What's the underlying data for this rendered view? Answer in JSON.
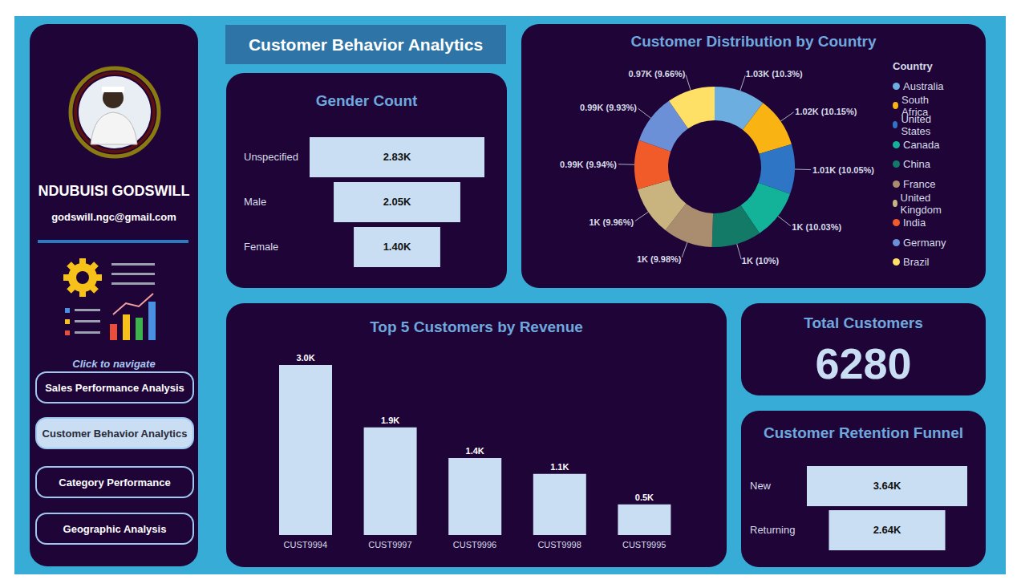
{
  "title": "Customer Behavior Analytics",
  "sidebar": {
    "name": "NDUBUISI GODSWILL",
    "email": "godswill.ngc@gmail.com",
    "navigation_hint": "Click to navigate",
    "buttons": [
      "Sales Performance Analysis",
      "Customer Behavior Analytics",
      "Category Performance",
      "Geographic Analysis"
    ],
    "active": "Customer Behavior Analytics"
  },
  "kpi": {
    "title": "Total Customers",
    "value": 6280
  },
  "chart_data": [
    {
      "type": "funnel",
      "title": "Gender Count",
      "categories": [
        "Unspecified",
        "Male",
        "Female"
      ],
      "values": [
        2830,
        2050,
        1400
      ],
      "value_labels": [
        "2.83K",
        "2.05K",
        "1.40K"
      ],
      "data_labels": true,
      "tick_labels": "y",
      "color": "#c9def2"
    },
    {
      "type": "donut",
      "title": "Customer Distribution by Country",
      "legend_title": "Country",
      "legend": "right",
      "categories": [
        "Australia",
        "South Africa",
        "United States",
        "Canada",
        "China",
        "France",
        "United Kingdom",
        "India",
        "Germany",
        "Brazil"
      ],
      "values": [
        1030,
        1015,
        1005,
        1003,
        1000,
        998,
        996,
        994,
        993,
        966
      ],
      "value_labels": [
        "1.03K (10.3%)",
        "1.02K (10.15%)",
        "1.01K (10.05%)",
        "1K (10.03%)",
        "1K (10%)",
        "1K (9.98%)",
        "1K (9.96%)",
        "0.99K (9.94%)",
        "0.99K (9.93%)",
        "0.97K (9.66%)"
      ],
      "data_labels": true,
      "colors": [
        "#6caee0",
        "#f9b312",
        "#2e75c6",
        "#12b398",
        "#137a68",
        "#a98d6e",
        "#c9b47f",
        "#f15a29",
        "#6b90d8",
        "#ffe066"
      ]
    },
    {
      "type": "bar",
      "title": "Top 5 Customers by Revenue",
      "categories": [
        "CUST9994",
        "CUST9997",
        "CUST9996",
        "CUST9998",
        "CUST9995"
      ],
      "values": [
        3000,
        1900,
        1360,
        1080,
        540
      ],
      "value_labels": [
        "3.0K",
        "1.9K",
        "1.4K",
        "1.1K",
        "0.5K"
      ],
      "data_labels": true,
      "tick_labels": "x",
      "color": "#c9def2"
    },
    {
      "type": "funnel",
      "title": "Customer Retention Funnel",
      "categories": [
        "New",
        "Returning"
      ],
      "values": [
        3640,
        2640
      ],
      "value_labels": [
        "3.64K",
        "2.64K"
      ],
      "data_labels": true,
      "tick_labels": "y",
      "color": "#c9def2"
    }
  ]
}
